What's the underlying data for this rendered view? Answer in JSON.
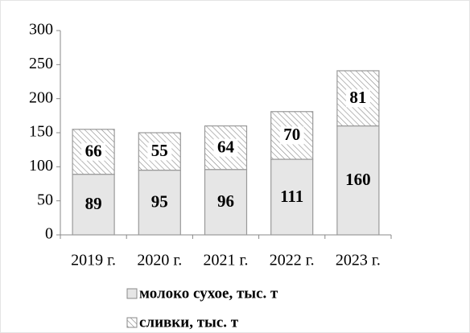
{
  "chart_data": {
    "type": "stacked_bar",
    "categories": [
      "2019 г.",
      "2020 г.",
      "2021 г.",
      "2022 г.",
      "2023 г."
    ],
    "series": [
      {
        "name": "молоко сухое, тыс. т",
        "color": "#e6e6e6",
        "values": [
          89,
          95,
          96,
          111,
          160
        ]
      },
      {
        "name": "сливки, тыс. т",
        "color": "#ffffff",
        "pattern": "hatch",
        "values": [
          66,
          55,
          64,
          70,
          81
        ]
      }
    ],
    "ylim": [
      0,
      300
    ],
    "yticks": [
      0,
      50,
      100,
      150,
      200,
      250,
      300
    ]
  }
}
